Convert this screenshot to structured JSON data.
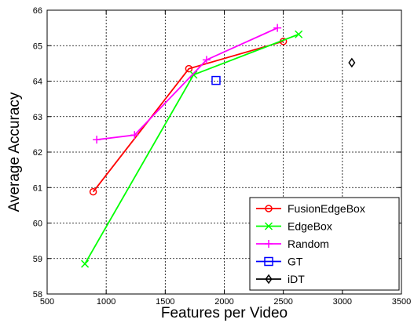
{
  "chart_data": {
    "type": "line",
    "title": "",
    "xlabel": "Features per Video",
    "ylabel": "Average Accuracy",
    "xlim": [
      500,
      3500
    ],
    "ylim": [
      58,
      66
    ],
    "xticks": [
      500,
      1000,
      1500,
      2000,
      2500,
      3000,
      3500
    ],
    "yticks": [
      58,
      59,
      60,
      61,
      62,
      63,
      64,
      65,
      66
    ],
    "grid": true,
    "legend_position": "bottom-right",
    "series": [
      {
        "name": "FusionEdgeBox",
        "color": "#ff0000",
        "marker": "circle",
        "line": true,
        "x": [
          890,
          1700,
          2500
        ],
        "y": [
          60.88,
          64.35,
          65.12
        ]
      },
      {
        "name": "EdgeBox",
        "color": "#00ff00",
        "marker": "x",
        "line": true,
        "x": [
          820,
          1740,
          2630
        ],
        "y": [
          58.85,
          64.18,
          65.32
        ]
      },
      {
        "name": "Random",
        "color": "#ff00ff",
        "marker": "plus",
        "line": true,
        "x": [
          920,
          1240,
          1850,
          2450
        ],
        "y": [
          62.35,
          62.48,
          64.6,
          65.5
        ]
      },
      {
        "name": "GT",
        "color": "#0000ff",
        "marker": "square",
        "line": false,
        "x": [
          1930
        ],
        "y": [
          64.02
        ]
      },
      {
        "name": "iDT",
        "color": "#000000",
        "marker": "diamond",
        "line": false,
        "x": [
          3080
        ],
        "y": [
          64.52
        ]
      }
    ]
  }
}
